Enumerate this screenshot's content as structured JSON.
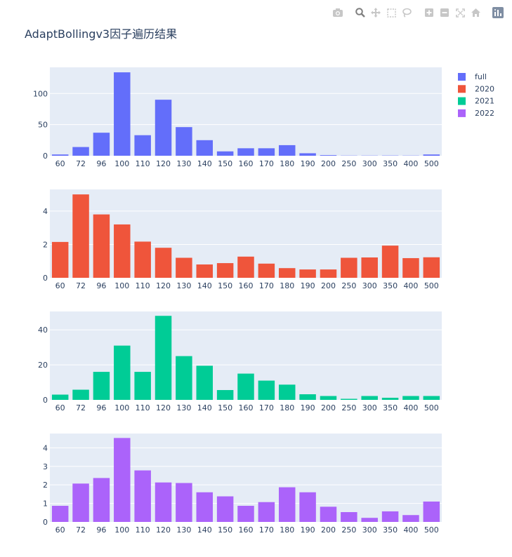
{
  "title": "AdaptBollingv3因子遍历结果",
  "modebar": {
    "buttons": [
      "camera-icon",
      "zoom-icon",
      "pan-icon",
      "box-select-icon",
      "lasso-icon",
      "zoom-in-icon",
      "zoom-out-icon",
      "autoscale-icon",
      "home-icon",
      "plotly-logo-icon"
    ]
  },
  "colors": {
    "plot_bg": "#e5ecf6",
    "grid": "#ffffff",
    "text": "#2a3f5f"
  },
  "chart_data": [
    {
      "type": "bar",
      "name": "full",
      "color": "#636efa",
      "categories": [
        "60",
        "72",
        "96",
        "100",
        "110",
        "120",
        "130",
        "140",
        "150",
        "160",
        "170",
        "180",
        "190",
        "200",
        "250",
        "300",
        "350",
        "400",
        "500"
      ],
      "values": [
        2,
        14,
        37,
        134,
        33,
        90,
        46,
        25,
        7,
        12,
        12,
        17,
        4,
        1,
        0.3,
        0.3,
        0.4,
        0.3,
        2
      ],
      "ylim": [
        0,
        142
      ],
      "yticks": [
        0,
        50,
        100
      ]
    },
    {
      "type": "bar",
      "name": "2020",
      "color": "#ef553b",
      "categories": [
        "60",
        "72",
        "96",
        "100",
        "110",
        "120",
        "130",
        "140",
        "150",
        "160",
        "170",
        "180",
        "190",
        "200",
        "250",
        "300",
        "350",
        "400",
        "500"
      ],
      "values": [
        2.15,
        5.0,
        3.8,
        3.2,
        2.17,
        1.8,
        1.2,
        0.8,
        0.88,
        1.27,
        0.85,
        0.58,
        0.5,
        0.5,
        1.2,
        1.22,
        1.93,
        1.18,
        1.23
      ],
      "ylim": [
        0,
        5.3
      ],
      "yticks": [
        0,
        2,
        4
      ]
    },
    {
      "type": "bar",
      "name": "2021",
      "color": "#00cc96",
      "categories": [
        "60",
        "72",
        "96",
        "100",
        "110",
        "120",
        "130",
        "140",
        "150",
        "160",
        "170",
        "180",
        "190",
        "200",
        "250",
        "300",
        "350",
        "400",
        "500"
      ],
      "values": [
        3,
        5.8,
        16,
        31,
        16,
        48,
        25,
        19.5,
        5.6,
        15,
        11,
        8.7,
        3.2,
        2.2,
        0.6,
        2.2,
        1.2,
        2.2,
        2.2
      ],
      "ylim": [
        0,
        50.5
      ],
      "yticks": [
        0,
        20,
        40
      ]
    },
    {
      "type": "bar",
      "name": "2022",
      "color": "#ab63fa",
      "categories": [
        "60",
        "72",
        "96",
        "100",
        "110",
        "120",
        "130",
        "140",
        "150",
        "160",
        "170",
        "180",
        "190",
        "200",
        "250",
        "300",
        "350",
        "400",
        "500"
      ],
      "values": [
        0.87,
        2.07,
        2.37,
        4.53,
        2.78,
        2.13,
        2.1,
        1.6,
        1.38,
        0.87,
        1.07,
        1.87,
        1.6,
        0.82,
        0.53,
        0.22,
        0.57,
        0.37,
        1.1
      ],
      "ylim": [
        0,
        4.77
      ],
      "yticks": [
        0,
        1,
        2,
        3,
        4
      ]
    }
  ],
  "legend": {
    "placement": "top-right",
    "items": [
      {
        "label": "full",
        "color": "#636efa"
      },
      {
        "label": "2020",
        "color": "#ef553b"
      },
      {
        "label": "2021",
        "color": "#00cc96"
      },
      {
        "label": "2022",
        "color": "#ab63fa"
      }
    ]
  }
}
